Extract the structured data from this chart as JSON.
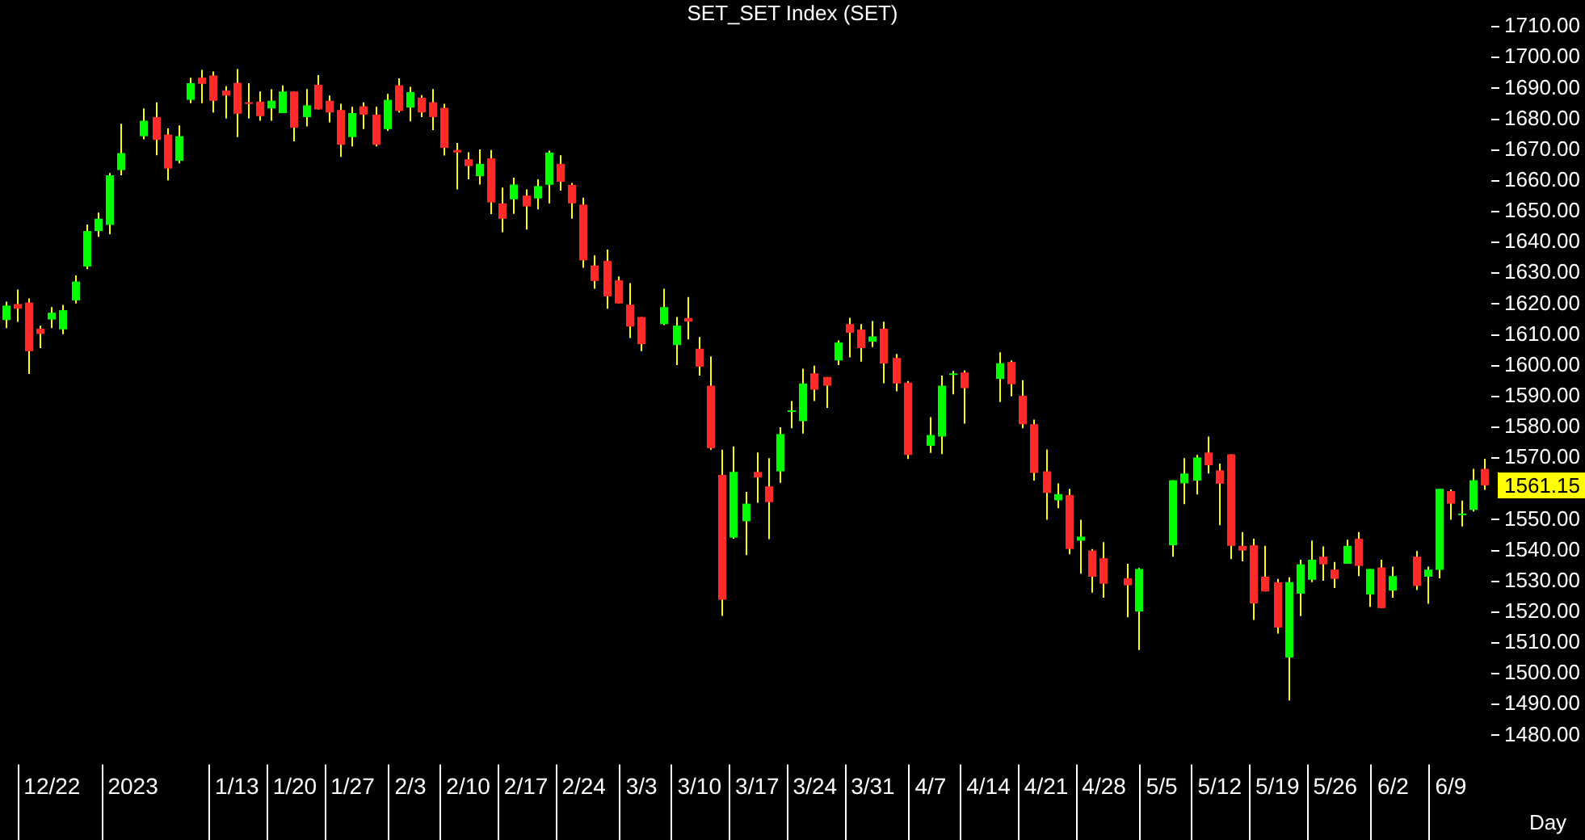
{
  "chart_data": {
    "type": "candlestick",
    "title": "SET_SET Index (SET)",
    "xlabel": "Day",
    "categories": [
      null,
      null,
      null,
      null,
      "12/22",
      null,
      null,
      null,
      null,
      null,
      null,
      "2023",
      null,
      null,
      null,
      null,
      null,
      null,
      null,
      null,
      "1/13",
      null,
      null,
      null,
      null,
      "1/20",
      null,
      null,
      null,
      null,
      "1/27",
      null,
      null,
      null,
      null,
      "2/3",
      null,
      null,
      null,
      null,
      "2/10",
      null,
      null,
      null,
      null,
      "2/17",
      null,
      null,
      null,
      null,
      "2/24",
      null,
      null,
      null,
      null,
      "3/3",
      null,
      null,
      null,
      null,
      "3/10",
      null,
      null,
      null,
      null,
      "3/17",
      null,
      null,
      null,
      null,
      "3/24",
      null,
      null,
      null,
      null,
      "3/31",
      null,
      null,
      null,
      null,
      "4/7",
      null,
      null,
      null,
      null,
      "4/14",
      null,
      null,
      null,
      null,
      "4/21",
      null,
      null,
      null,
      null,
      "4/28",
      null,
      null,
      null,
      null,
      "5/5",
      null,
      null,
      null,
      null,
      "5/12",
      null,
      null,
      null,
      null,
      "5/19",
      null,
      null,
      null,
      null,
      "5/26",
      null,
      null,
      null,
      null,
      "6/2",
      null,
      null,
      null,
      null,
      "6/9",
      null,
      null,
      null
    ],
    "ohlc": [
      [
        1614.8,
        1620.8,
        1612.2,
        1619.5
      ],
      [
        1620,
        1624.7,
        1614.2,
        1618.5
      ],
      [
        1620.5,
        1621.8,
        1597.3,
        1604.7
      ],
      [
        1612,
        1613,
        1605.7,
        1610.3
      ],
      [
        1615,
        1619,
        1612.2,
        1617.2
      ],
      [
        1611.8,
        1619.7,
        1610.2,
        1618
      ],
      [
        1621.2,
        1629.3,
        1620.2,
        1627.3
      ],
      [
        1632.2,
        1645.8,
        1631.3,
        1643.7
      ],
      [
        1643.7,
        1649.7,
        1641.8,
        1647.7
      ],
      [
        1645.7,
        1662.5,
        1642.7,
        1661.8
      ],
      [
        1663.5,
        1678.5,
        1661.8,
        1669
      ],
      null,
      [
        1674.5,
        1683.5,
        1673.5,
        1679.5
      ],
      [
        1680.7,
        1685.5,
        1668.3,
        1673.3
      ],
      [
        1675,
        1677,
        1660.2,
        1664
      ],
      [
        1666.5,
        1678,
        1665.7,
        1674.5
      ],
      [
        1686.3,
        1693.5,
        1685.2,
        1691.7
      ],
      [
        1693.5,
        1696,
        1685.2,
        1691.5
      ],
      [
        1694.2,
        1695.5,
        1682.2,
        1686
      ],
      [
        1689.3,
        1690.7,
        1680.2,
        1687.7
      ],
      [
        1691.8,
        1696.3,
        1674.2,
        1681.8
      ],
      [
        1685.5,
        1691.7,
        1680.2,
        1685.2
      ],
      [
        1685.7,
        1689,
        1679.5,
        1681
      ],
      [
        1683.5,
        1689.7,
        1679.5,
        1686
      ],
      [
        1682,
        1691,
        1682,
        1689
      ],
      [
        1689,
        1689,
        1672.8,
        1677.3
      ],
      [
        1680.7,
        1689.8,
        1677.7,
        1684.5
      ],
      [
        1691.2,
        1694.3,
        1683.2,
        1683.2
      ],
      [
        1686,
        1687.7,
        1679,
        1682.2
      ],
      [
        1683,
        1685,
        1667.8,
        1671.7
      ],
      [
        1674.2,
        1684,
        1671.2,
        1682
      ],
      [
        1684.2,
        1685.5,
        1676.8,
        1681.5
      ],
      [
        1681.5,
        1684,
        1671.2,
        1671.7
      ],
      [
        1676.8,
        1688.2,
        1676.2,
        1686.3
      ],
      [
        1691,
        1693.3,
        1682.2,
        1682.7
      ],
      [
        1683.8,
        1690.5,
        1679.3,
        1688.8
      ],
      [
        1687,
        1687.8,
        1680.7,
        1682.2
      ],
      [
        1685.5,
        1689.8,
        1676.5,
        1680.7
      ],
      [
        1683.7,
        1685,
        1668.2,
        1670.7
      ],
      [
        1670,
        1672.3,
        1657.2,
        1669.2
      ],
      [
        1667,
        1669.3,
        1660.5,
        1664.8
      ],
      [
        1661.5,
        1670.2,
        1658.8,
        1665.5
      ],
      [
        1667.3,
        1670,
        1649.2,
        1653
      ],
      [
        1652.7,
        1657.8,
        1643.3,
        1647.7
      ],
      [
        1654,
        1661,
        1649.3,
        1658.8
      ],
      [
        1655.2,
        1657.2,
        1644.2,
        1651.7
      ],
      [
        1654.3,
        1660.5,
        1650.7,
        1658.3
      ],
      [
        1658.7,
        1669.8,
        1652.7,
        1669.2
      ],
      [
        1665.5,
        1668.3,
        1656.8,
        1659.7
      ],
      [
        1658.7,
        1659.3,
        1647.7,
        1652.7
      ],
      [
        1652.3,
        1654.5,
        1631.8,
        1634.2
      ],
      [
        1632.5,
        1635.8,
        1625,
        1627.5
      ],
      [
        1634,
        1637.7,
        1618.5,
        1622.5
      ],
      [
        1627.7,
        1629,
        1620.2,
        1620.2
      ],
      [
        1619.8,
        1626.8,
        1609,
        1612.7
      ],
      [
        1615.8,
        1615.8,
        1604.7,
        1607
      ],
      null,
      [
        1613.5,
        1625,
        1613.2,
        1619
      ],
      [
        1606.7,
        1615.8,
        1600.2,
        1613
      ],
      [
        1615.5,
        1622.3,
        1608.5,
        1614.3
      ],
      [
        1605.5,
        1609.3,
        1596.8,
        1599.7
      ],
      [
        1593.5,
        1603,
        1572.7,
        1573.2
      ],
      [
        1564.5,
        1572.7,
        1518.8,
        1524
      ],
      [
        1544.2,
        1573.8,
        1543.8,
        1565.5
      ],
      [
        1549.5,
        1559,
        1538.5,
        1555.2
      ],
      [
        1565.5,
        1571.8,
        1555.5,
        1563.7
      ],
      [
        1560.8,
        1570,
        1543.7,
        1555.7
      ],
      [
        1565.7,
        1580,
        1562,
        1577.8
      ],
      [
        1585,
        1588.5,
        1579.7,
        1585.5
      ],
      [
        1582,
        1599,
        1578,
        1594.2
      ],
      [
        1597.5,
        1600,
        1588.5,
        1592.2
      ],
      [
        1596.3,
        1596.3,
        1586.3,
        1593.5
      ],
      [
        1601.7,
        1608.2,
        1600.2,
        1607.5
      ],
      [
        1613.5,
        1615.5,
        1602.7,
        1610.7
      ],
      [
        1611.7,
        1613.5,
        1601.3,
        1605.7
      ],
      [
        1607.8,
        1614.5,
        1606,
        1609.5
      ],
      [
        1612,
        1614.3,
        1594.3,
        1600.7
      ],
      [
        1602.5,
        1603.8,
        1591.7,
        1594.2
      ],
      [
        1594.5,
        1595,
        1569.7,
        1571
      ],
      null,
      [
        1574,
        1583.3,
        1571.7,
        1577.5
      ],
      [
        1577,
        1596.8,
        1571.3,
        1593.5
      ],
      [
        1597,
        1598.3,
        1590.7,
        1597.5
      ],
      [
        1597.8,
        1598.5,
        1581.2,
        1592.7
      ],
      null,
      null,
      [
        1595.7,
        1604.3,
        1588.2,
        1600.8
      ],
      [
        1601.2,
        1601.7,
        1590,
        1594
      ],
      [
        1590.2,
        1595.3,
        1579.7,
        1581
      ],
      [
        1581,
        1582.5,
        1562.7,
        1565.2
      ],
      [
        1565.7,
        1572.8,
        1550,
        1558.7
      ],
      [
        1556.3,
        1561.8,
        1553.7,
        1558.3
      ],
      [
        1558,
        1560,
        1538.8,
        1540.5
      ],
      [
        1543.2,
        1550,
        1532.5,
        1544.5
      ],
      [
        1540,
        1540.5,
        1526.3,
        1531.5
      ],
      [
        1537.5,
        1542.7,
        1524.7,
        1529.2
      ],
      null,
      [
        1531,
        1535.7,
        1518.3,
        1528.7
      ],
      [
        1520.2,
        1534.3,
        1507.7,
        1534
      ],
      null,
      null,
      [
        1541.7,
        1562.8,
        1538,
        1562.8
      ],
      [
        1561.8,
        1570,
        1555,
        1565
      ],
      [
        1562.7,
        1571,
        1558.2,
        1570.2
      ],
      [
        1571.8,
        1577,
        1565,
        1567.7
      ],
      [
        1566,
        1568.2,
        1548.2,
        1561.7
      ],
      [
        1571.2,
        1571.2,
        1537.2,
        1541.5
      ],
      [
        1541.5,
        1546,
        1536.5,
        1540
      ],
      [
        1541.7,
        1543.8,
        1517.5,
        1522.8
      ],
      [
        1531.5,
        1541.5,
        1526.7,
        1526.7
      ],
      [
        1529.7,
        1530.8,
        1513,
        1515
      ],
      [
        1505.3,
        1531.3,
        1491.3,
        1529.7
      ],
      [
        1526,
        1537,
        1518.7,
        1535.5
      ],
      [
        1530.5,
        1543.2,
        1529.7,
        1537
      ],
      [
        1538,
        1541.3,
        1530.2,
        1535.5
      ],
      [
        1533.8,
        1536.3,
        1527.8,
        1530.8
      ],
      [
        1535.7,
        1543.5,
        1535.7,
        1541.5
      ],
      [
        1543.8,
        1546,
        1531.7,
        1535
      ],
      [
        1525.7,
        1534,
        1521.7,
        1534
      ],
      [
        1534.5,
        1537,
        1521.3,
        1521.3
      ],
      [
        1527,
        1534.8,
        1524.7,
        1531.7
      ],
      null,
      [
        1538,
        1539.8,
        1527.2,
        1528.5
      ],
      [
        1531.5,
        1534.8,
        1522.7,
        1533.8
      ],
      [
        1533.7,
        1560,
        1531,
        1560
      ],
      [
        1559.3,
        1559.8,
        1550,
        1555.2
      ],
      [
        1551.7,
        1556.2,
        1547.8,
        1552
      ],
      [
        1553.2,
        1566.5,
        1552.7,
        1562.8
      ],
      [
        1566.5,
        1569.8,
        1559.7,
        1561.15
      ]
    ],
    "colors": [
      "#00ff00",
      "#ff2a2a",
      "#ff2a2a",
      "#ff2a2a",
      "#00ff00",
      "#00ff00",
      "#00ff00",
      "#00ff00",
      "#00ff00",
      "#00ff00",
      "#00ff00",
      null,
      "#00ff00",
      "#ff2a2a",
      "#ff2a2a",
      "#00ff00",
      "#00ff00",
      "#ff2a2a",
      "#ff2a2a",
      "#ff2a2a",
      "#ff2a2a",
      "#ff2a2a",
      "#ff2a2a",
      "#00ff00",
      "#00ff00",
      "#ff2a2a",
      "#00ff00",
      "#ff2a2a",
      "#ff2a2a",
      "#ff2a2a",
      "#00ff00",
      "#ff2a2a",
      "#ff2a2a",
      "#00ff00",
      "#ff2a2a",
      "#00ff00",
      "#ff2a2a",
      "#ff2a2a",
      "#ff2a2a",
      "#ff2a2a",
      "#ff2a2a",
      "#00ff00",
      "#ff2a2a",
      "#ff2a2a",
      "#00ff00",
      "#ff2a2a",
      "#00ff00",
      "#00ff00",
      "#ff2a2a",
      "#ff2a2a",
      "#ff2a2a",
      "#ff2a2a",
      "#ff2a2a",
      "#ff2a2a",
      "#ff2a2a",
      "#ff2a2a",
      null,
      "#00ff00",
      "#00ff00",
      "#ff2a2a",
      "#ff2a2a",
      "#ff2a2a",
      "#ff2a2a",
      "#00ff00",
      "#00ff00",
      "#ff2a2a",
      "#ff2a2a",
      "#00ff00",
      "#00ff00",
      "#00ff00",
      "#ff2a2a",
      "#ff2a2a",
      "#00ff00",
      "#ff2a2a",
      "#ff2a2a",
      "#00ff00",
      "#ff2a2a",
      "#ff2a2a",
      "#ff2a2a",
      null,
      "#00ff00",
      "#00ff00",
      "#00ff00",
      "#ff2a2a",
      null,
      null,
      "#00ff00",
      "#ff2a2a",
      "#ff2a2a",
      "#ff2a2a",
      "#ff2a2a",
      "#00ff00",
      "#ff2a2a",
      "#00ff00",
      "#ff2a2a",
      "#ff2a2a",
      null,
      "#ff2a2a",
      "#00ff00",
      null,
      null,
      "#00ff00",
      "#00ff00",
      "#00ff00",
      "#ff2a2a",
      "#ff2a2a",
      "#ff2a2a",
      "#ff2a2a",
      "#ff2a2a",
      "#ff2a2a",
      "#ff2a2a",
      "#00ff00",
      "#00ff00",
      "#00ff00",
      "#ff2a2a",
      "#ff2a2a",
      "#00ff00",
      "#ff2a2a",
      "#00ff00",
      "#ff2a2a",
      "#00ff00",
      null,
      "#ff2a2a",
      "#00ff00",
      "#00ff00",
      "#ff2a2a",
      "#00ff00",
      "#00ff00",
      "#ff2a2a"
    ],
    "ylim": [
      1480,
      1710
    ],
    "yticks": [
      {
        "value": 1480,
        "label": "1480.00"
      },
      {
        "value": 1490,
        "label": "1490.00"
      },
      {
        "value": 1500,
        "label": "1500.00"
      },
      {
        "value": 1510,
        "label": "1510.00"
      },
      {
        "value": 1520,
        "label": "1520.00"
      },
      {
        "value": 1530,
        "label": "1530.00"
      },
      {
        "value": 1540,
        "label": "1540.00"
      },
      {
        "value": 1550,
        "label": "1550.00"
      },
      {
        "value": 1570,
        "label": "1570.00"
      },
      {
        "value": 1580,
        "label": "1580.00"
      },
      {
        "value": 1590,
        "label": "1590.00"
      },
      {
        "value": 1600,
        "label": "1600.00"
      },
      {
        "value": 1610,
        "label": "1610.00"
      },
      {
        "value": 1620,
        "label": "1620.00"
      },
      {
        "value": 1630,
        "label": "1630.00"
      },
      {
        "value": 1640,
        "label": "1640.00"
      },
      {
        "value": 1650,
        "label": "1650.00"
      },
      {
        "value": 1660,
        "label": "1660.00"
      },
      {
        "value": 1670,
        "label": "1670.00"
      },
      {
        "value": 1680,
        "label": "1680.00"
      },
      {
        "value": 1690,
        "label": "1690.00"
      },
      {
        "value": 1700,
        "label": "1700.00"
      },
      {
        "value": 1710,
        "label": "1710.00"
      }
    ],
    "annotations": [
      "1561.15"
    ]
  }
}
